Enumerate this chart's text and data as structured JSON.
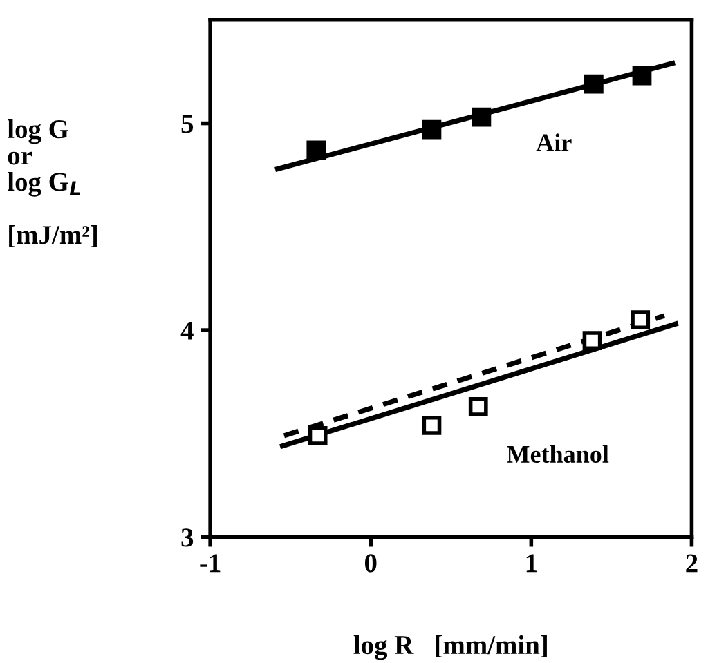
{
  "chart_data": {
    "type": "scatter",
    "xlabel": "log R   [mm/min]",
    "ylabel": "log G\nor\nlog G$_{L}$\n\n[mJ/m²]",
    "xlim": [
      -1,
      2
    ],
    "ylim": [
      3,
      5.5
    ],
    "xticks": [
      -1,
      0,
      1,
      2
    ],
    "yticks": [
      3,
      4,
      5
    ],
    "grid": false,
    "legend": false,
    "series": [
      {
        "marker": "square",
        "color": "#000000",
        "x": [
          -0.34,
          0.38,
          0.69,
          1.39,
          1.69
        ],
        "values": [
          4.87,
          4.97,
          5.03,
          5.19,
          5.23
        ]
      },
      {
        "name": "Air",
        "type": "line",
        "marker": "none",
        "line_style": "solid",
        "color": "#000000",
        "x": [
          -0.58,
          1.88
        ],
        "values": [
          4.78,
          5.29
        ]
      },
      {
        "marker": "square",
        "color": "#000000",
        "x": [
          -0.33,
          0.38,
          0.67,
          1.38,
          1.68
        ],
        "values": [
          3.49,
          3.54,
          3.63,
          3.95,
          4.05
        ]
      },
      {
        "name": "Methanol",
        "type": "line",
        "marker": "none",
        "line_style": "solid",
        "color": "#000000",
        "x": [
          -0.55,
          1.9
        ],
        "values": [
          3.44,
          4.03
        ]
      },
      {
        "type": "line",
        "marker": "none",
        "line_style": "dashed",
        "color": "#000000",
        "x": [
          -0.54,
          1.83
        ],
        "values": [
          3.49,
          4.07
        ]
      }
    ]
  }
}
